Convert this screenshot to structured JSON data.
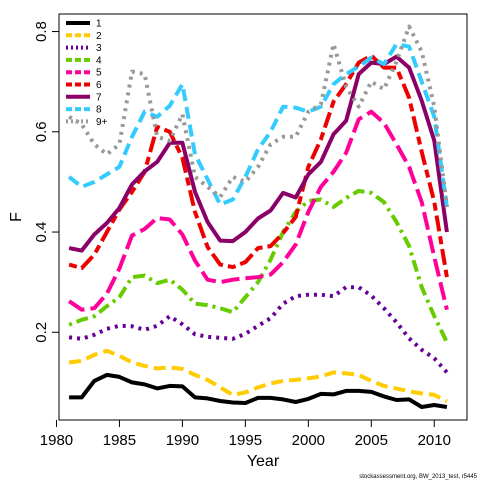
{
  "chart_data": {
    "type": "line",
    "xlabel": "Year",
    "ylabel": "F",
    "xlim": [
      1980.2,
      2012.6
    ],
    "ylim": [
      0.025,
      0.835
    ],
    "xticks": [
      1980,
      1985,
      1990,
      1995,
      2000,
      2005,
      2010
    ],
    "yticks": [
      0.2,
      0.4,
      0.6,
      0.8
    ],
    "grid": false,
    "legend_position": "top-left",
    "credit": "stockassessment.org, BW_2013_test, r5445",
    "x": [
      1981,
      1982,
      1983,
      1984,
      1985,
      1986,
      1987,
      1988,
      1989,
      1990,
      1991,
      1992,
      1993,
      1994,
      1995,
      1996,
      1997,
      1998,
      1999,
      2000,
      2001,
      2002,
      2003,
      2004,
      2005,
      2006,
      2007,
      2008,
      2009,
      2010,
      2011
    ],
    "series": [
      {
        "name": "1",
        "color": "#000000",
        "dash": "solid",
        "values": [
          0.07,
          0.07,
          0.103,
          0.115,
          0.111,
          0.1,
          0.096,
          0.088,
          0.093,
          0.092,
          0.07,
          0.068,
          0.063,
          0.06,
          0.059,
          0.069,
          0.069,
          0.066,
          0.061,
          0.067,
          0.077,
          0.076,
          0.083,
          0.083,
          0.081,
          0.072,
          0.065,
          0.066,
          0.051,
          0.055,
          0.051
        ]
      },
      {
        "name": "2",
        "color": "#FFCC00",
        "dash": "dash",
        "values": [
          0.14,
          0.143,
          0.155,
          0.163,
          0.153,
          0.14,
          0.133,
          0.128,
          0.13,
          0.127,
          0.115,
          0.105,
          0.09,
          0.075,
          0.08,
          0.09,
          0.098,
          0.103,
          0.105,
          0.108,
          0.112,
          0.12,
          0.118,
          0.115,
          0.103,
          0.093,
          0.088,
          0.082,
          0.078,
          0.075,
          0.062
        ]
      },
      {
        "name": "3",
        "color": "#660099",
        "dash": "dot",
        "values": [
          0.19,
          0.187,
          0.195,
          0.207,
          0.213,
          0.212,
          0.205,
          0.213,
          0.232,
          0.216,
          0.196,
          0.191,
          0.189,
          0.187,
          0.197,
          0.213,
          0.228,
          0.257,
          0.272,
          0.275,
          0.275,
          0.272,
          0.29,
          0.29,
          0.273,
          0.248,
          0.22,
          0.188,
          0.165,
          0.148,
          0.12
        ]
      },
      {
        "name": "4",
        "color": "#66CC00",
        "dash": "dashdot",
        "values": [
          0.215,
          0.225,
          0.232,
          0.252,
          0.27,
          0.31,
          0.313,
          0.298,
          0.305,
          0.285,
          0.257,
          0.254,
          0.248,
          0.24,
          0.27,
          0.3,
          0.345,
          0.4,
          0.44,
          0.462,
          0.465,
          0.45,
          0.468,
          0.482,
          0.478,
          0.46,
          0.42,
          0.372,
          0.29,
          0.232,
          0.18
        ]
      },
      {
        "name": "5",
        "color": "#FF0099",
        "dash": "longdash",
        "values": [
          0.262,
          0.245,
          0.248,
          0.277,
          0.327,
          0.393,
          0.406,
          0.428,
          0.425,
          0.395,
          0.343,
          0.305,
          0.3,
          0.305,
          0.308,
          0.31,
          0.315,
          0.34,
          0.375,
          0.44,
          0.49,
          0.52,
          0.558,
          0.625,
          0.64,
          0.618,
          0.575,
          0.53,
          0.46,
          0.35,
          0.245
        ]
      },
      {
        "name": "6",
        "color": "#EE0000",
        "dash": "twodash",
        "values": [
          0.335,
          0.328,
          0.355,
          0.4,
          0.445,
          0.48,
          0.52,
          0.61,
          0.6,
          0.548,
          0.44,
          0.37,
          0.335,
          0.33,
          0.34,
          0.368,
          0.372,
          0.398,
          0.43,
          0.53,
          0.585,
          0.66,
          0.695,
          0.738,
          0.752,
          0.728,
          0.728,
          0.668,
          0.56,
          0.46,
          0.31
        ]
      },
      {
        "name": "7",
        "color": "#8B0066",
        "dash": "solid",
        "values": [
          0.368,
          0.363,
          0.395,
          0.418,
          0.448,
          0.495,
          0.521,
          0.54,
          0.578,
          0.578,
          0.48,
          0.42,
          0.383,
          0.382,
          0.4,
          0.427,
          0.443,
          0.478,
          0.469,
          0.515,
          0.54,
          0.595,
          0.622,
          0.715,
          0.738,
          0.735,
          0.75,
          0.728,
          0.662,
          0.582,
          0.4
        ]
      },
      {
        "name": "8",
        "color": "#33CCFF",
        "dash": "dash",
        "values": [
          0.51,
          0.49,
          0.5,
          0.515,
          0.53,
          0.59,
          0.64,
          0.63,
          0.652,
          0.695,
          0.555,
          0.505,
          0.455,
          0.465,
          0.51,
          0.565,
          0.6,
          0.65,
          0.648,
          0.64,
          0.65,
          0.695,
          0.715,
          0.73,
          0.748,
          0.735,
          0.775,
          0.77,
          0.7,
          0.63,
          0.45
        ]
      },
      {
        "name": "9+",
        "color": "#999999",
        "dash": "dot",
        "values": [
          0.63,
          0.615,
          0.575,
          0.555,
          0.575,
          0.72,
          0.715,
          0.59,
          0.582,
          0.635,
          0.51,
          0.49,
          0.47,
          0.51,
          0.5,
          0.53,
          0.575,
          0.59,
          0.59,
          0.64,
          0.655,
          0.775,
          0.69,
          0.65,
          0.7,
          0.685,
          0.74,
          0.81,
          0.76,
          0.65,
          0.45
        ]
      }
    ]
  }
}
